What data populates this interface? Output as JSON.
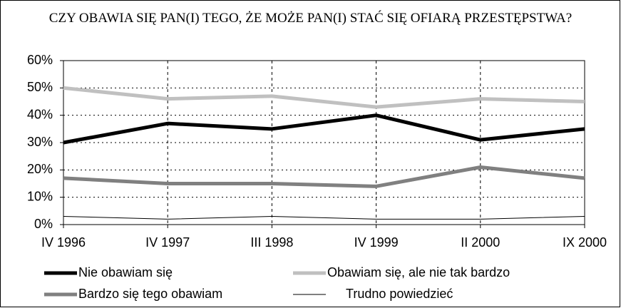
{
  "chart_data": {
    "type": "line",
    "title": "CZY OBAWIA SIĘ PAN(I) TEGO, ŻE MOŻE PAN(I) STAĆ SIĘ OFIARĄ PRZESTĘPSTWA?",
    "categories": [
      "IV 1996",
      "IV 1997",
      "III 1998",
      "IV 1999",
      "II 2000",
      "IX 2000"
    ],
    "series": [
      {
        "name": "Nie obawiam się",
        "color": "#000000",
        "width": 5,
        "values": [
          30,
          37,
          35,
          40,
          31,
          35
        ]
      },
      {
        "name": "Obawiam się, ale nie tak bardzo",
        "color": "#c0c0c0",
        "width": 5,
        "values": [
          50,
          46,
          47,
          43,
          46,
          45
        ]
      },
      {
        "name": "Bardzo się tego obawiam",
        "color": "#808080",
        "width": 5,
        "values": [
          17,
          15,
          15,
          14,
          21,
          17
        ]
      },
      {
        "name": "Trudno powiedzieć",
        "color": "#000000",
        "width": 1,
        "values": [
          3,
          2,
          3,
          2,
          2,
          3
        ]
      }
    ],
    "ylim": [
      0,
      60
    ],
    "yticks": [
      {
        "value": 0,
        "label": "0%"
      },
      {
        "value": 10,
        "label": "10%"
      },
      {
        "value": 20,
        "label": "20%"
      },
      {
        "value": 30,
        "label": "30%"
      },
      {
        "value": 40,
        "label": "40%"
      },
      {
        "value": 50,
        "label": "50%"
      },
      {
        "value": 60,
        "label": "60%"
      }
    ],
    "grid": true,
    "legend": "bottom"
  }
}
